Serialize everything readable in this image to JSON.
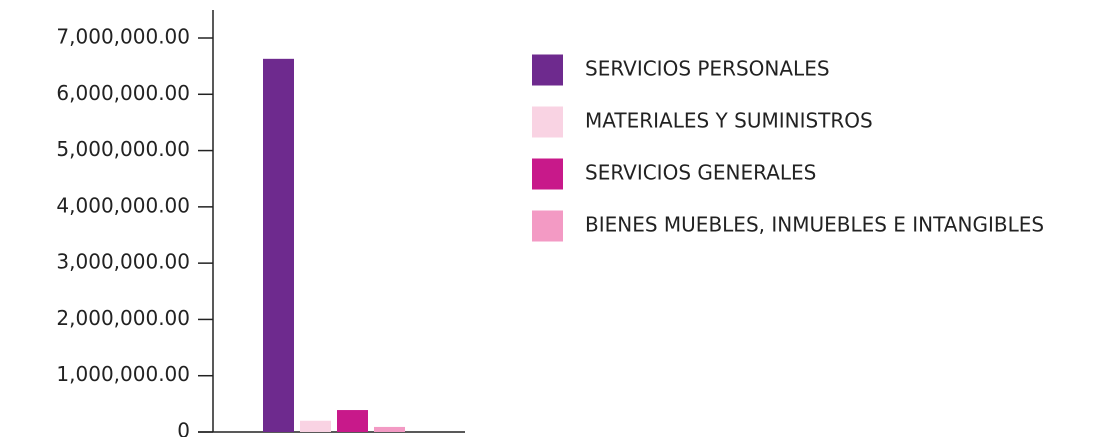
{
  "chart_data": {
    "type": "bar",
    "series": [
      {
        "name": "SERVICIOS PERSONALES",
        "color": "#6e2a8e",
        "values": [
          6630000
        ]
      },
      {
        "name": "MATERIALES Y SUMINISTROS",
        "color": "#f9d3e3",
        "values": [
          200000
        ]
      },
      {
        "name": "SERVICIOS GENERALES",
        "color": "#c8198a",
        "values": [
          390000
        ]
      },
      {
        "name": "BIENES MUEBLES, INMUEBLES E INTANGIBLES",
        "color": "#f39ac4",
        "values": [
          90000
        ]
      }
    ],
    "ylim": [
      0,
      7000000
    ],
    "yticks": [
      0,
      {
        "value": 1000000,
        "label": "1,000,000.00"
      },
      {
        "value": 2000000,
        "label": "2,000,000.00"
      },
      {
        "value": 3000000,
        "label": "3,000,000.00"
      },
      {
        "value": 4000000,
        "label": "4,000,000.00"
      },
      {
        "value": 5000000,
        "label": "5,000,000.00"
      },
      {
        "value": 6000000,
        "label": "6,000,000.00"
      },
      {
        "value": 7000000,
        "label": "7,000,000.00"
      }
    ],
    "legend": "right"
  }
}
